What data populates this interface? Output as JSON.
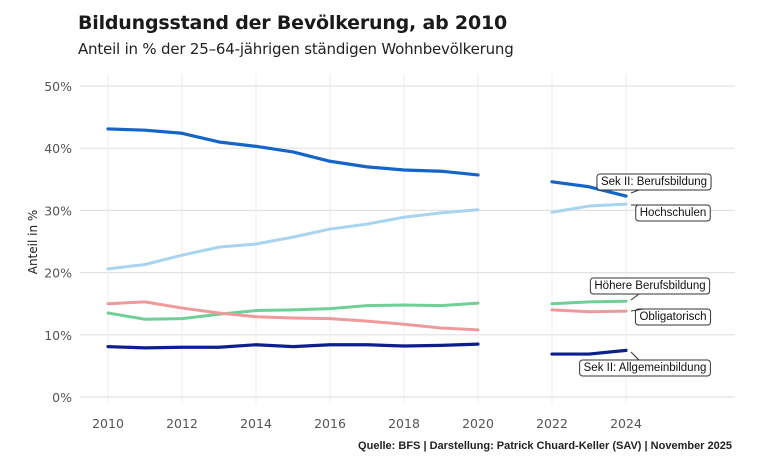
{
  "chart_data": {
    "type": "line",
    "title": "Bildungsstand der Bevölkerung, ab 2010",
    "subtitle": "Anteil in % der 25–64-jährigen ständigen Wohnbevölkerung",
    "xlabel": "",
    "ylabel": "Anteil in %",
    "ylim": [
      0,
      50
    ],
    "xlim": [
      2010,
      2024
    ],
    "x_ticks": [
      2010,
      2012,
      2014,
      2016,
      2018,
      2020,
      2022,
      2024
    ],
    "x_tick_labels": [
      "2010",
      "2012",
      "2014",
      "2016",
      "2018",
      "2020",
      "2022",
      "2024"
    ],
    "y_ticks": [
      0,
      10,
      20,
      30,
      40,
      50
    ],
    "y_tick_labels": [
      "0%",
      "10%",
      "20%",
      "30%",
      "40%",
      "50%"
    ],
    "grid": true,
    "legend": "direct-labels-right",
    "gap_note": "no data for 2021",
    "series": [
      {
        "name": "Sek II: Berufsbildung",
        "color": "#1565c8",
        "x": [
          2010,
          2011,
          2012,
          2013,
          2014,
          2015,
          2016,
          2017,
          2018,
          2019,
          2020,
          2022,
          2023,
          2024
        ],
        "values": [
          43.1,
          42.9,
          42.4,
          41.0,
          40.3,
          39.4,
          37.9,
          37.0,
          36.5,
          36.3,
          35.7,
          34.6,
          33.8,
          32.3
        ]
      },
      {
        "name": "Hochschulen",
        "color": "#a9d4f0",
        "x": [
          2010,
          2011,
          2012,
          2013,
          2014,
          2015,
          2016,
          2017,
          2018,
          2019,
          2020,
          2022,
          2023,
          2024
        ],
        "values": [
          20.6,
          21.3,
          22.8,
          24.1,
          24.6,
          25.7,
          27.0,
          27.8,
          28.9,
          29.6,
          30.1,
          29.7,
          30.7,
          31.0
        ]
      },
      {
        "name": "Höhere Berufsbildung",
        "color": "#6fcf97",
        "x": [
          2010,
          2011,
          2012,
          2013,
          2014,
          2015,
          2016,
          2017,
          2018,
          2019,
          2020,
          2022,
          2023,
          2024
        ],
        "values": [
          13.5,
          12.5,
          12.6,
          13.3,
          13.9,
          14.0,
          14.2,
          14.7,
          14.8,
          14.7,
          15.1,
          15.0,
          15.3,
          15.4
        ]
      },
      {
        "name": "Obligatorisch",
        "color": "#ef9a9a",
        "x": [
          2010,
          2011,
          2012,
          2013,
          2014,
          2015,
          2016,
          2017,
          2018,
          2019,
          2020,
          2022,
          2023,
          2024
        ],
        "values": [
          15.0,
          15.3,
          14.3,
          13.5,
          12.9,
          12.7,
          12.6,
          12.2,
          11.7,
          11.1,
          10.8,
          14.0,
          13.7,
          13.8
        ]
      },
      {
        "name": "Sek II: Allgemeinbildung",
        "color": "#0d1f8c",
        "x": [
          2010,
          2011,
          2012,
          2013,
          2014,
          2015,
          2016,
          2017,
          2018,
          2019,
          2020,
          2022,
          2023,
          2024
        ],
        "values": [
          8.1,
          7.9,
          8.0,
          8.0,
          8.4,
          8.1,
          8.4,
          8.4,
          8.2,
          8.3,
          8.5,
          6.9,
          6.9,
          7.5
        ]
      }
    ],
    "annotations": [
      "Quelle: BFS | Darstellung: Patrick Chuard-Keller (SAV) | November 2025"
    ]
  },
  "caption": "Quelle: BFS | Darstellung: Patrick Chuard-Keller (SAV) | November 2025"
}
